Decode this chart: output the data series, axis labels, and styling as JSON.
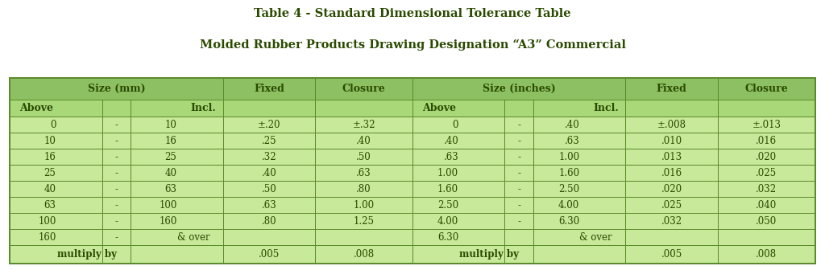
{
  "title_line1": "Table 4 - Standard Dimensional Tolerance Table",
  "title_line2": "Molded Rubber Products Drawing Designation “A3” Commercial",
  "header_bg": "#8DC063",
  "subheader_bg": "#A8D878",
  "row_bg": "#C8E89A",
  "row_bg_light": "#DDEEBB",
  "border_color": "#5a8a2a",
  "text_color": "#2a4a00",
  "rows": [
    [
      "0",
      "-",
      "10",
      "±.20",
      "±.32",
      "0",
      "-",
      ".40",
      "±.008",
      "±.013"
    ],
    [
      "10",
      "-",
      "16",
      ".25",
      ".40",
      ".40",
      "-",
      ".63",
      ".010",
      ".016"
    ],
    [
      "16",
      "-",
      "25",
      ".32",
      ".50",
      ".63",
      "-",
      "1.00",
      ".013",
      ".020"
    ],
    [
      "25",
      "-",
      "40",
      ".40",
      ".63",
      "1.00",
      "-",
      "1.60",
      ".016",
      ".025"
    ],
    [
      "40",
      "-",
      "63",
      ".50",
      ".80",
      "1.60",
      "-",
      "2.50",
      ".020",
      ".032"
    ],
    [
      "63",
      "-",
      "100",
      ".63",
      "1.00",
      "2.50",
      "-",
      "4.00",
      ".025",
      ".040"
    ],
    [
      "100",
      "-",
      "160",
      ".80",
      "1.25",
      "4.00",
      "-",
      "6.30",
      ".032",
      ".050"
    ],
    [
      "160",
      "-",
      "& over",
      "",
      "",
      "6.30",
      "",
      "& over",
      "",
      ""
    ],
    [
      "",
      "",
      "multiply by",
      ".005",
      ".008",
      "",
      "",
      "multiply by",
      ".005",
      ".008"
    ]
  ]
}
